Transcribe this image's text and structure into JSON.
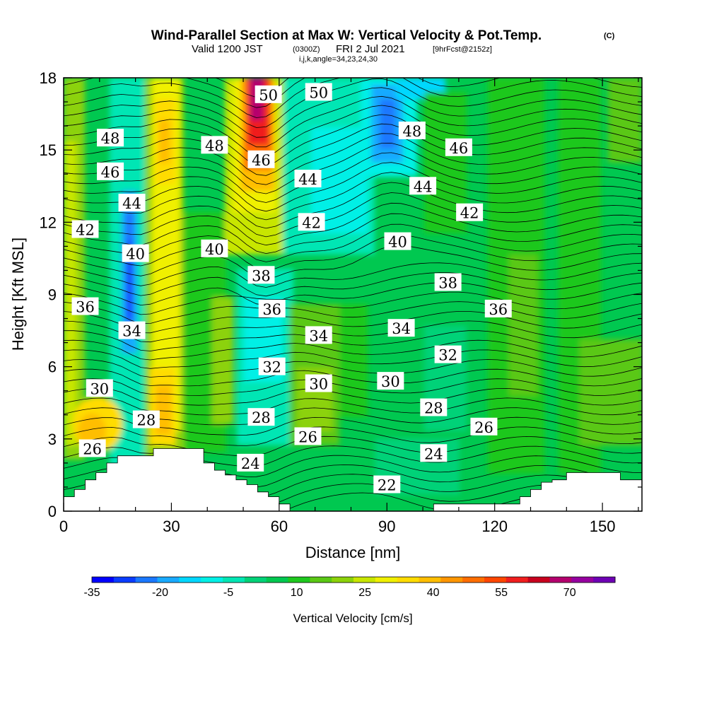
{
  "chart_data": {
    "type": "heatmap",
    "title": "Wind-Parallel Section at Max W: Vertical Velocity & Pot.Temp.",
    "title_mark": "(C)",
    "subtitle_valid": "Valid 1200 JST",
    "subtitle_utc": "(0300Z)",
    "subtitle_date": "FRI 2 Jul 2021",
    "subtitle_fcst": "[9hrFcst@2152z]",
    "subtitle_ijk": "i,j,k,angle=34,23,24,30",
    "xlabel": "Distance [nm]",
    "ylabel": "Height [Kft MSL]",
    "xlim": [
      0,
      161
    ],
    "ylim": [
      0,
      18
    ],
    "xticks": [
      "0",
      "30",
      "60",
      "90",
      "120",
      "150"
    ],
    "yticks": [
      "0",
      "3",
      "6",
      "9",
      "12",
      "15",
      "18"
    ],
    "colorbar": {
      "label": "Vertical Velocity [cm/s]",
      "tick_labels": [
        "-35",
        "-20",
        "-5",
        "10",
        "25",
        "40",
        "55",
        "70"
      ],
      "levels": [
        -35,
        80
      ],
      "colors": [
        "#0000ff",
        "#0a3cff",
        "#1a78ff",
        "#19aaff",
        "#00d7ff",
        "#00f0e6",
        "#00e6b4",
        "#00d278",
        "#00c850",
        "#1ec81e",
        "#5ac814",
        "#8cd20a",
        "#c8e600",
        "#f0f000",
        "#ffdc00",
        "#ffbe00",
        "#ff9600",
        "#ff6e00",
        "#ff4600",
        "#f01e1e",
        "#c8001e",
        "#b4006e",
        "#9600a0",
        "#6e00b4"
      ]
    },
    "theta_contours": {
      "units": "C",
      "interval": 1,
      "labels": [
        {
          "value": "50",
          "x": 57,
          "y": 17.3
        },
        {
          "value": "50",
          "x": 71,
          "y": 17.4
        },
        {
          "value": "48",
          "x": 13,
          "y": 15.5
        },
        {
          "value": "48",
          "x": 42,
          "y": 15.2
        },
        {
          "value": "48",
          "x": 97,
          "y": 15.8
        },
        {
          "value": "46",
          "x": 13,
          "y": 14.1
        },
        {
          "value": "46",
          "x": 55,
          "y": 14.6
        },
        {
          "value": "46",
          "x": 110,
          "y": 15.1
        },
        {
          "value": "44",
          "x": 19,
          "y": 12.8
        },
        {
          "value": "44",
          "x": 68,
          "y": 13.8
        },
        {
          "value": "44",
          "x": 100,
          "y": 13.5
        },
        {
          "value": "42",
          "x": 6,
          "y": 11.7
        },
        {
          "value": "42",
          "x": 69,
          "y": 12.0
        },
        {
          "value": "42",
          "x": 113,
          "y": 12.4
        },
        {
          "value": "40",
          "x": 20,
          "y": 10.7
        },
        {
          "value": "40",
          "x": 42,
          "y": 10.9
        },
        {
          "value": "40",
          "x": 93,
          "y": 11.2
        },
        {
          "value": "38",
          "x": 55,
          "y": 9.8
        },
        {
          "value": "38",
          "x": 107,
          "y": 9.5
        },
        {
          "value": "36",
          "x": 6,
          "y": 8.5
        },
        {
          "value": "36",
          "x": 58,
          "y": 8.4
        },
        {
          "value": "36",
          "x": 121,
          "y": 8.4
        },
        {
          "value": "34",
          "x": 19,
          "y": 7.5
        },
        {
          "value": "34",
          "x": 71,
          "y": 7.3
        },
        {
          "value": "34",
          "x": 94,
          "y": 7.6
        },
        {
          "value": "32",
          "x": 58,
          "y": 6.0
        },
        {
          "value": "32",
          "x": 107,
          "y": 6.5
        },
        {
          "value": "30",
          "x": 10,
          "y": 5.1
        },
        {
          "value": "30",
          "x": 71,
          "y": 5.3
        },
        {
          "value": "30",
          "x": 91,
          "y": 5.4
        },
        {
          "value": "28",
          "x": 23,
          "y": 3.8
        },
        {
          "value": "28",
          "x": 55,
          "y": 3.9
        },
        {
          "value": "28",
          "x": 103,
          "y": 4.3
        },
        {
          "value": "26",
          "x": 8,
          "y": 2.6
        },
        {
          "value": "26",
          "x": 68,
          "y": 3.1
        },
        {
          "value": "26",
          "x": 117,
          "y": 3.5
        },
        {
          "value": "24",
          "x": 52,
          "y": 2.0
        },
        {
          "value": "24",
          "x": 103,
          "y": 2.4
        },
        {
          "value": "22",
          "x": 90,
          "y": 1.1
        }
      ]
    },
    "features": [
      {
        "name": "updraft-core-max",
        "x": 53,
        "y_range": [
          13.5,
          18
        ],
        "w_cm_s": 70
      },
      {
        "name": "updraft-left",
        "x": 27,
        "y_range": [
          3.5,
          18
        ],
        "w_cm_s": 35
      },
      {
        "name": "updraft-lowlevel-left",
        "x": 12,
        "y_range": [
          2.5,
          5.5
        ],
        "w_cm_s": 30
      },
      {
        "name": "downdraft-left-column",
        "x": 19,
        "y_range": [
          7,
          14
        ],
        "w_cm_s": -30
      },
      {
        "name": "downdraft-upper-right",
        "x": 90,
        "y_range": [
          14,
          18
        ],
        "w_cm_s": -25
      },
      {
        "name": "downdraft-mid",
        "x": 60,
        "y_range": [
          5.5,
          11
        ],
        "w_cm_s": -10
      }
    ],
    "terrain_profile": [
      [
        0,
        0.6
      ],
      [
        3,
        0.9
      ],
      [
        6,
        1.3
      ],
      [
        9,
        1.6
      ],
      [
        12,
        2.0
      ],
      [
        15,
        2.3
      ],
      [
        25,
        2.6
      ],
      [
        37,
        2.6
      ],
      [
        39,
        2.0
      ],
      [
        42,
        1.7
      ],
      [
        45,
        1.5
      ],
      [
        48,
        1.3
      ],
      [
        51,
        1.1
      ],
      [
        54,
        0.8
      ],
      [
        57,
        0.6
      ],
      [
        60,
        0.3
      ],
      [
        63,
        0
      ],
      [
        100,
        0
      ],
      [
        103,
        0.3
      ],
      [
        124,
        0.3
      ],
      [
        127,
        0.6
      ],
      [
        130,
        0.9
      ],
      [
        133,
        1.2
      ],
      [
        136,
        1.3
      ],
      [
        140,
        1.6
      ],
      [
        155,
        1.6
      ],
      [
        155,
        1.3
      ],
      [
        161,
        1.3
      ]
    ]
  }
}
